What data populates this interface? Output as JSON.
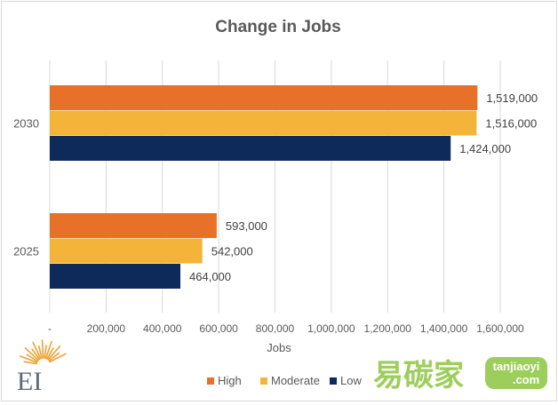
{
  "chart_data": {
    "type": "bar",
    "orientation": "horizontal",
    "title": "Change in Jobs",
    "xlabel": "Jobs",
    "ylabel": "",
    "categories": [
      "2030",
      "2025"
    ],
    "series": [
      {
        "name": "High",
        "color": "#e8712a",
        "values": [
          1519000,
          593000
        ],
        "labels": [
          "1,519,000",
          "593,000"
        ]
      },
      {
        "name": "Moderate",
        "color": "#f4b43a",
        "values": [
          1516000,
          542000
        ],
        "labels": [
          "1,516,000",
          "542,000"
        ]
      },
      {
        "name": "Low",
        "color": "#0e2a5a",
        "values": [
          1424000,
          464000
        ],
        "labels": [
          "1,424,000",
          "464,000"
        ]
      }
    ],
    "xlim": [
      0,
      1600000
    ],
    "xticks": [
      0,
      200000,
      400000,
      600000,
      800000,
      1000000,
      1200000,
      1400000,
      1600000
    ],
    "xtick_labels": [
      "-",
      "200,000",
      "400,000",
      "600,000",
      "800,000",
      "1,000,000",
      "1,200,000",
      "1,400,000",
      "1,600,000"
    ],
    "grid": true,
    "legend_position": "bottom"
  },
  "logo": {
    "text": "EI",
    "color": "#f0a030"
  },
  "watermark": {
    "cn": "易碳家",
    "domain_top": "tanjiaoyi",
    "domain_bottom": ".com",
    "color": "#8cc63f"
  }
}
